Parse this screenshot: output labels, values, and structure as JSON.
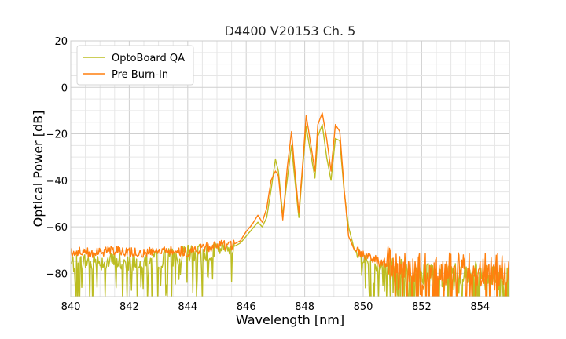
{
  "chart_data": {
    "type": "line",
    "title": "D4400 V20153 Ch. 5",
    "xlabel": "Wavelength [nm]",
    "ylabel": "Optical Power [dB]",
    "xlim": [
      840,
      855
    ],
    "ylim": [
      -90,
      20
    ],
    "xticks": [
      840,
      842,
      844,
      846,
      848,
      850,
      852,
      854
    ],
    "yticks": [
      20,
      0,
      -20,
      -40,
      -60,
      -80
    ],
    "ytick_labels": [
      "20",
      "0",
      "−20",
      "−40",
      "−60",
      "−80"
    ],
    "grid": true,
    "legend_position": "top-left",
    "series": [
      {
        "name": "OptoBoard QA",
        "color": "#bcbd22",
        "x": [
          840.0,
          840.5,
          841.0,
          841.5,
          842.0,
          842.5,
          843.0,
          843.5,
          844.0,
          844.5,
          845.0,
          845.5,
          845.8,
          846.0,
          846.2,
          846.4,
          846.55,
          846.7,
          846.85,
          847.0,
          847.1,
          847.25,
          847.4,
          847.55,
          847.65,
          847.8,
          847.95,
          848.05,
          848.2,
          848.35,
          848.45,
          848.6,
          848.75,
          848.9,
          849.05,
          849.2,
          849.35,
          849.5,
          849.7,
          850.0,
          850.3,
          850.6,
          851.0,
          851.5,
          852.0,
          852.5,
          853.0,
          853.5,
          854.0,
          854.5,
          855.0
        ],
        "y": [
          -76,
          -75,
          -75,
          -75,
          -75,
          -74,
          -74,
          -73,
          -72,
          -71,
          -70,
          -69,
          -67,
          -64,
          -61,
          -58,
          -60,
          -56,
          -44,
          -31,
          -36,
          -55,
          -40,
          -25,
          -38,
          -56,
          -32,
          -17,
          -28,
          -39,
          -21,
          -16,
          -30,
          -40,
          -22,
          -23,
          -45,
          -60,
          -70,
          -74,
          -76,
          -77,
          -78,
          -79,
          -80,
          -80,
          -80,
          -80,
          -80,
          -80,
          -80
        ]
      },
      {
        "name": "Pre Burn-In",
        "color": "#ff7f0e",
        "x": [
          840.0,
          840.5,
          841.0,
          841.5,
          842.0,
          842.5,
          843.0,
          843.5,
          844.0,
          844.5,
          845.0,
          845.5,
          845.8,
          846.0,
          846.2,
          846.4,
          846.55,
          846.7,
          846.85,
          847.0,
          847.1,
          847.25,
          847.4,
          847.55,
          847.65,
          847.8,
          847.95,
          848.05,
          848.2,
          848.35,
          848.45,
          848.6,
          848.75,
          848.9,
          849.05,
          849.2,
          849.35,
          849.5,
          849.7,
          850.0,
          850.3,
          850.6,
          851.0,
          851.5,
          852.0,
          852.5,
          853.0,
          853.5,
          854.0,
          854.5,
          855.0
        ],
        "y": [
          -71,
          -71,
          -71,
          -70,
          -71,
          -71,
          -70,
          -70,
          -71,
          -69,
          -68,
          -68,
          -66,
          -62,
          -59,
          -55,
          -58,
          -52,
          -40,
          -36,
          -38,
          -57,
          -35,
          -19,
          -34,
          -54,
          -30,
          -12,
          -24,
          -36,
          -16,
          -11,
          -22,
          -36,
          -16,
          -19,
          -44,
          -64,
          -70,
          -72,
          -74,
          -75,
          -76,
          -77,
          -78,
          -78,
          -78,
          -78,
          -78,
          -78,
          -79
        ]
      }
    ]
  }
}
